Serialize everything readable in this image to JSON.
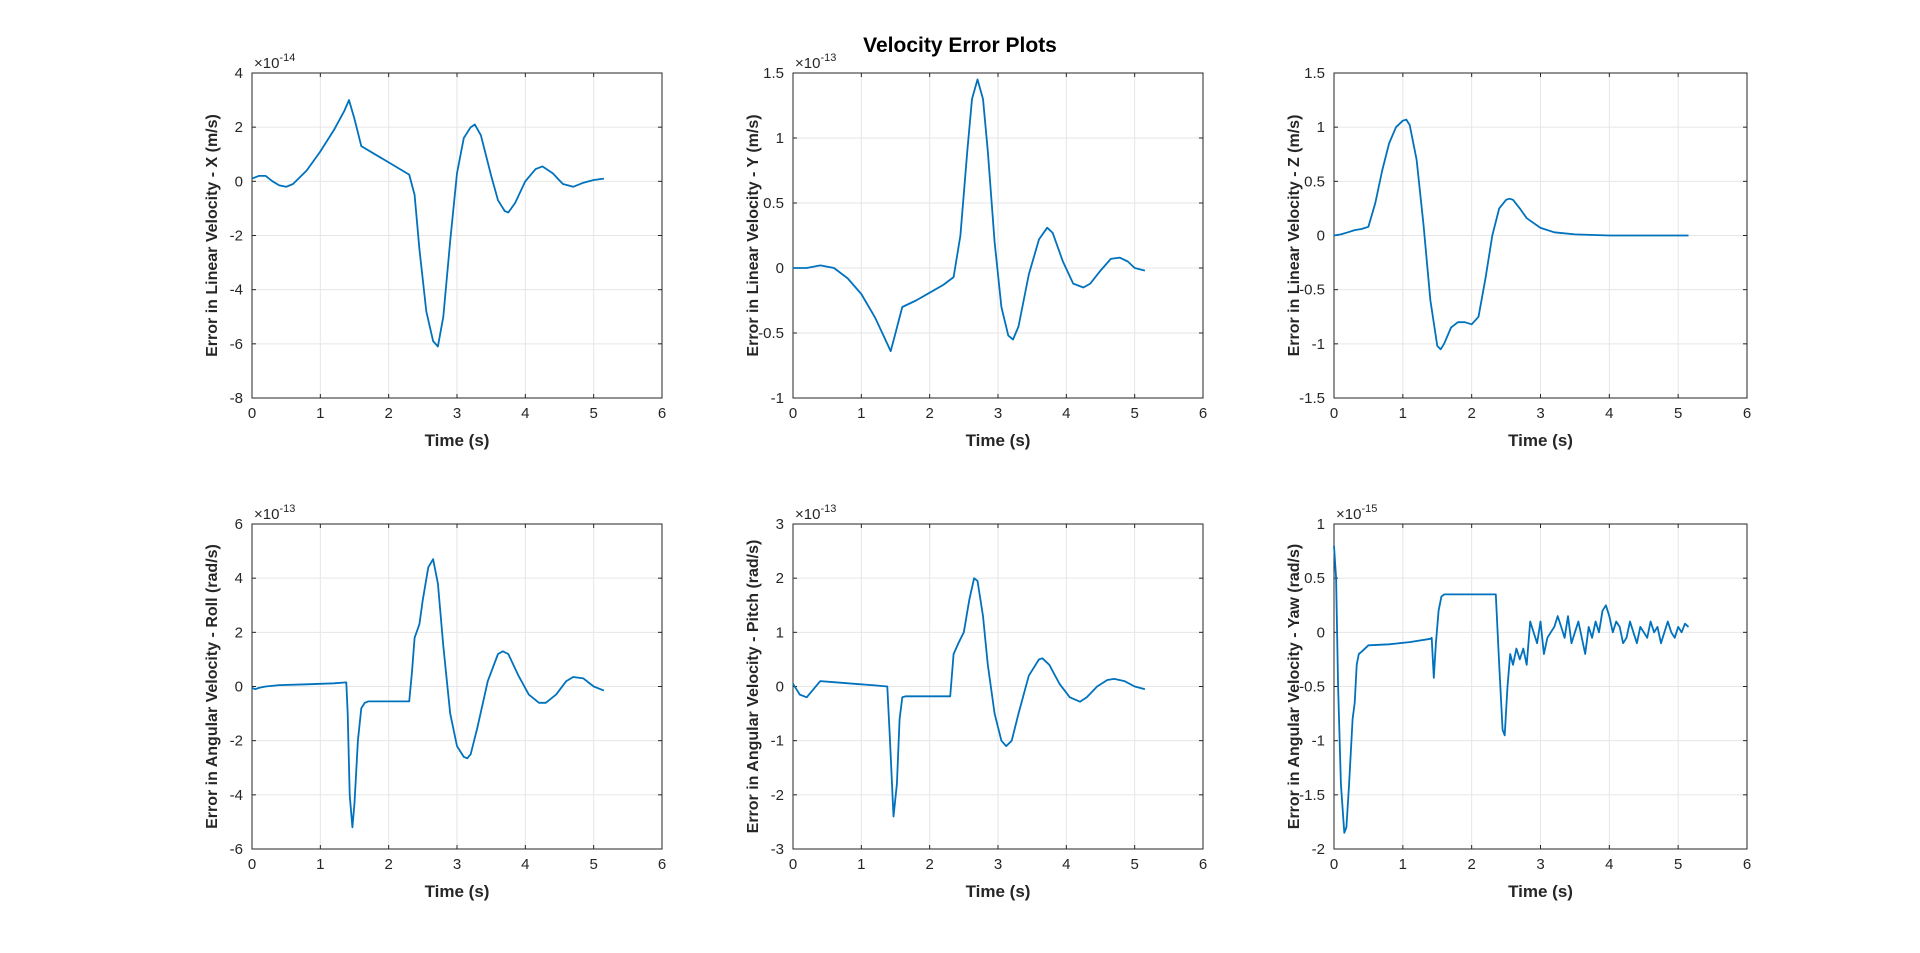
{
  "figure": {
    "title": "Velocity Error Plots"
  },
  "chart_data": [
    {
      "type": "line",
      "title": "",
      "xlabel": "Time (s)",
      "ylabel": "Error in Linear Velocity - X (m/s)",
      "exponent_base": "×10",
      "exponent": "-14",
      "xlim": [
        0,
        6
      ],
      "ylim": [
        -8,
        4
      ],
      "xticks": [
        "0",
        "1",
        "2",
        "3",
        "4",
        "5",
        "6"
      ],
      "yticks": [
        "-8",
        "-6",
        "-4",
        "-2",
        "0",
        "2",
        "4"
      ],
      "grid": true,
      "line_color": "#0072BD",
      "series": [
        {
          "x": [
            0,
            0.1,
            0.2,
            0.3,
            0.4,
            0.5,
            0.6,
            0.8,
            1.0,
            1.2,
            1.35,
            1.42,
            1.5,
            1.6,
            1.8,
            2.0,
            2.2,
            2.3,
            2.38,
            2.45,
            2.55,
            2.65,
            2.72,
            2.8,
            2.9,
            3.0,
            3.1,
            3.2,
            3.26,
            3.35,
            3.5,
            3.6,
            3.7,
            3.75,
            3.85,
            4.0,
            4.15,
            4.25,
            4.4,
            4.55,
            4.7,
            4.85,
            5.0,
            5.15
          ],
          "y": [
            0.1,
            0.2,
            0.2,
            0.0,
            -0.15,
            -0.2,
            -0.1,
            0.4,
            1.1,
            1.9,
            2.6,
            3.0,
            2.3,
            1.3,
            1.0,
            0.7,
            0.4,
            0.25,
            -0.5,
            -2.5,
            -4.8,
            -5.9,
            -6.1,
            -5.0,
            -2.2,
            0.3,
            1.6,
            2.0,
            2.1,
            1.7,
            0.2,
            -0.7,
            -1.1,
            -1.15,
            -0.8,
            0.0,
            0.45,
            0.55,
            0.3,
            -0.1,
            -0.2,
            -0.05,
            0.05,
            0.1
          ]
        }
      ]
    },
    {
      "type": "line",
      "title": "",
      "xlabel": "Time (s)",
      "ylabel": "Error in Linear Velocity - Y (m/s)",
      "exponent_base": "×10",
      "exponent": "-13",
      "xlim": [
        0,
        6
      ],
      "ylim": [
        -1,
        1.5
      ],
      "xticks": [
        "0",
        "1",
        "2",
        "3",
        "4",
        "5",
        "6"
      ],
      "yticks": [
        "-1",
        "-0.5",
        "0",
        "0.5",
        "1",
        "1.5"
      ],
      "grid": true,
      "line_color": "#0072BD",
      "series": [
        {
          "x": [
            0,
            0.2,
            0.4,
            0.6,
            0.8,
            1.0,
            1.2,
            1.35,
            1.43,
            1.5,
            1.6,
            1.8,
            2.0,
            2.2,
            2.35,
            2.45,
            2.55,
            2.62,
            2.7,
            2.78,
            2.85,
            2.95,
            3.05,
            3.15,
            3.22,
            3.3,
            3.45,
            3.6,
            3.72,
            3.8,
            3.95,
            4.1,
            4.25,
            4.35,
            4.5,
            4.65,
            4.78,
            4.9,
            5.0,
            5.15
          ],
          "y": [
            0.0,
            0.0,
            0.02,
            0.0,
            -0.08,
            -0.2,
            -0.38,
            -0.55,
            -0.64,
            -0.5,
            -0.3,
            -0.25,
            -0.19,
            -0.13,
            -0.07,
            0.25,
            0.9,
            1.3,
            1.45,
            1.3,
            0.9,
            0.2,
            -0.3,
            -0.52,
            -0.55,
            -0.45,
            -0.05,
            0.22,
            0.31,
            0.27,
            0.05,
            -0.12,
            -0.15,
            -0.12,
            -0.02,
            0.07,
            0.08,
            0.05,
            0.0,
            -0.02
          ]
        }
      ]
    },
    {
      "type": "line",
      "title": "",
      "xlabel": "Time (s)",
      "ylabel": "Error in Linear Velocity - Z (m/s)",
      "exponent_base": "",
      "exponent": "",
      "xlim": [
        0,
        6
      ],
      "ylim": [
        -1.5,
        1.5
      ],
      "xticks": [
        "0",
        "1",
        "2",
        "3",
        "4",
        "5",
        "6"
      ],
      "yticks": [
        "-1.5",
        "-1",
        "-0.5",
        "0",
        "0.5",
        "1",
        "1.5"
      ],
      "grid": true,
      "line_color": "#0072BD",
      "series": [
        {
          "x": [
            0,
            0.1,
            0.2,
            0.3,
            0.4,
            0.5,
            0.6,
            0.7,
            0.8,
            0.9,
            1.0,
            1.05,
            1.1,
            1.2,
            1.3,
            1.4,
            1.5,
            1.55,
            1.6,
            1.7,
            1.8,
            1.9,
            2.0,
            2.1,
            2.2,
            2.3,
            2.4,
            2.5,
            2.55,
            2.6,
            2.7,
            2.8,
            3.0,
            3.2,
            3.5,
            4.0,
            4.5,
            5.0,
            5.15
          ],
          "y": [
            0.0,
            0.01,
            0.03,
            0.05,
            0.06,
            0.08,
            0.3,
            0.6,
            0.85,
            1.0,
            1.06,
            1.07,
            1.02,
            0.7,
            0.1,
            -0.6,
            -1.02,
            -1.05,
            -1.0,
            -0.85,
            -0.8,
            -0.8,
            -0.82,
            -0.75,
            -0.4,
            0.0,
            0.25,
            0.33,
            0.34,
            0.33,
            0.25,
            0.16,
            0.07,
            0.03,
            0.01,
            0.0,
            0.0,
            0.0,
            0.0
          ]
        }
      ]
    },
    {
      "type": "line",
      "title": "",
      "xlabel": "Time (s)",
      "ylabel": "Error in Angular Velocity - Roll (rad/s)",
      "exponent_base": "×10",
      "exponent": "-13",
      "xlim": [
        0,
        6
      ],
      "ylim": [
        -6,
        6
      ],
      "xticks": [
        "0",
        "1",
        "2",
        "3",
        "4",
        "5",
        "6"
      ],
      "yticks": [
        "-6",
        "-4",
        "-2",
        "0",
        "2",
        "4",
        "6"
      ],
      "grid": true,
      "line_color": "#0072BD",
      "series": [
        {
          "x": [
            0,
            0.05,
            0.1,
            0.2,
            0.4,
            0.8,
            1.2,
            1.38,
            1.4,
            1.43,
            1.47,
            1.5,
            1.55,
            1.6,
            1.65,
            1.7,
            2.0,
            2.3,
            2.34,
            2.38,
            2.45,
            2.5,
            2.58,
            2.65,
            2.72,
            2.8,
            2.9,
            3.0,
            3.1,
            3.15,
            3.2,
            3.3,
            3.45,
            3.6,
            3.67,
            3.75,
            3.9,
            4.05,
            4.2,
            4.3,
            4.45,
            4.6,
            4.7,
            4.85,
            5.0,
            5.15
          ],
          "y": [
            -0.05,
            -0.1,
            -0.05,
            0.0,
            0.05,
            0.08,
            0.12,
            0.15,
            -1.0,
            -4.0,
            -5.2,
            -4.3,
            -2.0,
            -0.8,
            -0.6,
            -0.55,
            -0.55,
            -0.55,
            0.5,
            1.8,
            2.3,
            3.2,
            4.4,
            4.7,
            3.8,
            1.5,
            -1.0,
            -2.2,
            -2.6,
            -2.65,
            -2.5,
            -1.5,
            0.2,
            1.2,
            1.3,
            1.2,
            0.4,
            -0.3,
            -0.6,
            -0.6,
            -0.3,
            0.2,
            0.35,
            0.3,
            0.0,
            -0.15
          ]
        }
      ]
    },
    {
      "type": "line",
      "title": "",
      "xlabel": "Time (s)",
      "ylabel": "Error in Angular Velocity - Pitch (rad/s)",
      "exponent_base": "×10",
      "exponent": "-13",
      "xlim": [
        0,
        6
      ],
      "ylim": [
        -3,
        3
      ],
      "xticks": [
        "0",
        "1",
        "2",
        "3",
        "4",
        "5",
        "6"
      ],
      "yticks": [
        "-3",
        "-2",
        "-1",
        "0",
        "1",
        "2",
        "3"
      ],
      "grid": true,
      "line_color": "#0072BD",
      "series": [
        {
          "x": [
            0,
            0.05,
            0.1,
            0.2,
            0.3,
            0.4,
            0.6,
            0.9,
            1.2,
            1.38,
            1.42,
            1.47,
            1.52,
            1.56,
            1.6,
            1.65,
            1.8,
            2.0,
            2.3,
            2.35,
            2.42,
            2.5,
            2.58,
            2.65,
            2.7,
            2.78,
            2.85,
            2.95,
            3.05,
            3.12,
            3.2,
            3.3,
            3.45,
            3.6,
            3.65,
            3.75,
            3.9,
            4.05,
            4.2,
            4.3,
            4.45,
            4.6,
            4.7,
            4.85,
            5.0,
            5.15
          ],
          "y": [
            0.05,
            -0.05,
            -0.15,
            -0.2,
            -0.05,
            0.1,
            0.08,
            0.05,
            0.02,
            0.0,
            -1.0,
            -2.4,
            -1.8,
            -0.6,
            -0.2,
            -0.18,
            -0.18,
            -0.18,
            -0.18,
            0.6,
            0.8,
            1.0,
            1.6,
            2.0,
            1.95,
            1.3,
            0.4,
            -0.5,
            -1.0,
            -1.1,
            -1.0,
            -0.5,
            0.2,
            0.5,
            0.52,
            0.4,
            0.05,
            -0.2,
            -0.28,
            -0.2,
            0.0,
            0.12,
            0.14,
            0.1,
            0.0,
            -0.05
          ]
        }
      ]
    },
    {
      "type": "line",
      "title": "",
      "xlabel": "Time (s)",
      "ylabel": "Error in Angular Velocity - Yaw (rad/s)",
      "exponent_base": "×10",
      "exponent": "-15",
      "xlim": [
        0,
        6
      ],
      "ylim": [
        -2,
        1
      ],
      "xticks": [
        "0",
        "1",
        "2",
        "3",
        "4",
        "5",
        "6"
      ],
      "yticks": [
        "-2",
        "-1.5",
        "-1",
        "-0.5",
        "0",
        "0.5",
        "1"
      ],
      "grid": true,
      "line_color": "#0072BD",
      "series": [
        {
          "x": [
            0,
            0.03,
            0.06,
            0.1,
            0.15,
            0.18,
            0.22,
            0.27,
            0.3,
            0.33,
            0.36,
            0.4,
            0.5,
            0.8,
            1.1,
            1.4,
            1.42,
            1.45,
            1.48,
            1.52,
            1.56,
            1.6,
            1.8,
            2.0,
            2.2,
            2.35,
            2.4,
            2.45,
            2.48,
            2.52,
            2.56,
            2.6,
            2.65,
            2.7,
            2.75,
            2.8,
            2.85,
            2.9,
            2.95,
            3.0,
            3.05,
            3.1,
            3.15,
            3.2,
            3.25,
            3.3,
            3.35,
            3.4,
            3.45,
            3.5,
            3.55,
            3.6,
            3.65,
            3.7,
            3.75,
            3.8,
            3.85,
            3.9,
            3.95,
            4.0,
            4.05,
            4.1,
            4.15,
            4.2,
            4.25,
            4.3,
            4.35,
            4.4,
            4.45,
            4.5,
            4.55,
            4.6,
            4.65,
            4.7,
            4.75,
            4.8,
            4.85,
            4.9,
            4.95,
            5.0,
            5.05,
            5.1,
            5.15
          ],
          "y": [
            0.8,
            0.5,
            -0.5,
            -1.4,
            -1.85,
            -1.8,
            -1.4,
            -0.8,
            -0.65,
            -0.3,
            -0.2,
            -0.18,
            -0.12,
            -0.11,
            -0.09,
            -0.06,
            -0.05,
            -0.42,
            -0.1,
            0.2,
            0.33,
            0.35,
            0.35,
            0.35,
            0.35,
            0.35,
            -0.3,
            -0.9,
            -0.95,
            -0.5,
            -0.2,
            -0.3,
            -0.15,
            -0.25,
            -0.15,
            -0.3,
            0.1,
            0.0,
            -0.1,
            0.1,
            -0.2,
            -0.05,
            0.0,
            0.05,
            0.15,
            0.05,
            -0.05,
            0.15,
            -0.1,
            0.0,
            0.1,
            -0.05,
            -0.2,
            0.05,
            -0.05,
            0.1,
            0.0,
            0.2,
            0.25,
            0.15,
            0.0,
            0.1,
            0.05,
            -0.1,
            -0.05,
            0.1,
            0.0,
            -0.1,
            0.05,
            0.0,
            -0.05,
            0.1,
            0.0,
            0.05,
            -0.1,
            0.0,
            0.1,
            0.0,
            -0.05,
            0.05,
            0.0,
            0.08,
            0.05
          ]
        }
      ]
    }
  ]
}
